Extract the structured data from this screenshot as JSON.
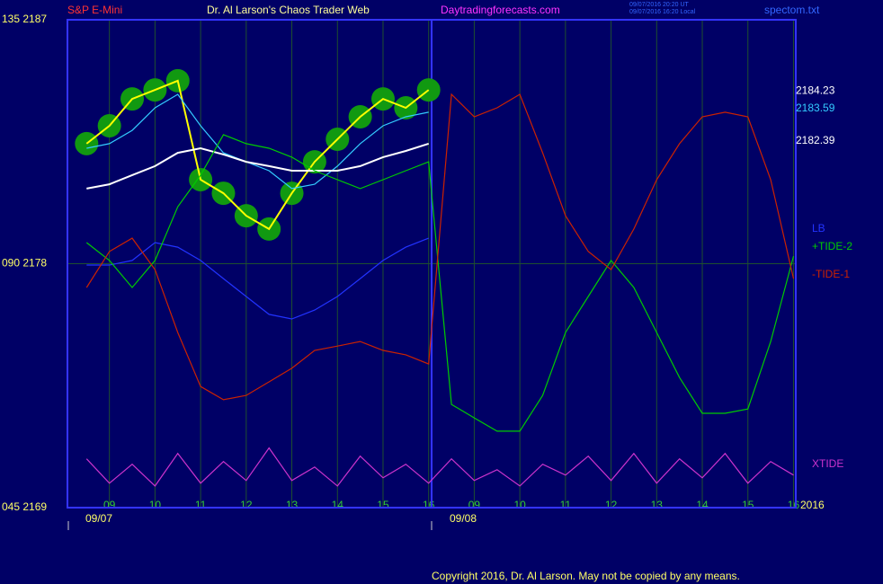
{
  "header": {
    "symbol": "S&P E-Mini",
    "title": "Dr. Al Larson's Chaos Trader Web",
    "site": "Daytradingforecasts.com",
    "time_ut": "09/07/2016 20:20 UT",
    "time_local": "09/07/2016 16:20 Local",
    "file": "spectom.txt"
  },
  "chart_data": {
    "type": "line",
    "x": [
      8.5,
      9,
      9.5,
      10,
      10.5,
      11,
      11.5,
      12,
      12.5,
      13,
      13.5,
      14,
      14.5,
      15,
      15.5,
      16,
      16.5,
      17,
      17.5,
      18,
      18.5,
      19,
      19.5,
      20,
      20.5,
      21,
      21.5,
      22,
      22.5,
      23,
      23.5,
      24
    ],
    "xlim": [
      8.08,
      24.05
    ],
    "xticks": [
      {
        "value": 9,
        "label": "09"
      },
      10,
      11,
      12,
      13,
      14,
      15,
      16,
      {
        "value": 17,
        "label": "09"
      },
      {
        "value": 18,
        "label": "10"
      },
      {
        "value": 19,
        "label": "11"
      },
      {
        "value": 20,
        "label": "12"
      },
      {
        "value": 21,
        "label": "13"
      },
      {
        "value": 22,
        "label": "14"
      },
      {
        "value": 23,
        "label": "15"
      },
      {
        "value": 24,
        "label": "16"
      }
    ],
    "ylim": [
      2169,
      2187
    ],
    "yticks": [
      {
        "value": 2187,
        "label": "135  2187"
      },
      {
        "value": 2178,
        "label": "090  2178"
      },
      {
        "value": 2169,
        "label": "045  2169"
      }
    ],
    "grid": true,
    "series": [
      {
        "color": "#ffff00",
        "glow": "#119911",
        "values": [
          2182.43,
          2183.09,
          2184.08,
          2184.41,
          2184.75,
          2181.1,
          2180.6,
          2179.77,
          2179.28,
          2180.6,
          2181.76,
          2182.59,
          2183.42,
          2184.08,
          2183.75,
          2184.41,
          null,
          null,
          null,
          null,
          null,
          null,
          null,
          null,
          null,
          null,
          null,
          null,
          null,
          null,
          null,
          null
        ]
      },
      {
        "color": "#33ccff",
        "values": [
          2182.26,
          2182.43,
          2182.92,
          2183.75,
          2184.25,
          2183.09,
          2182.09,
          2181.76,
          2181.43,
          2180.77,
          2180.93,
          2181.6,
          2182.43,
          2183.09,
          2183.42,
          2183.59,
          null,
          null,
          null,
          null,
          null,
          null,
          null,
          null,
          null,
          null,
          null,
          null,
          null,
          null,
          null,
          null
        ]
      },
      {
        "color": "#ffffff",
        "values": [
          2180.77,
          2180.93,
          2181.27,
          2181.6,
          2182.09,
          2182.26,
          2182.03,
          2181.76,
          2181.6,
          2181.43,
          2181.43,
          2181.43,
          2181.6,
          2181.93,
          2182.16,
          2182.43,
          null,
          null,
          null,
          null,
          null,
          null,
          null,
          null,
          null,
          null,
          null,
          null,
          null,
          null,
          null,
          null
        ]
      },
      {
        "name": "LB",
        "color": "#2233ff",
        "values": [
          2177.95,
          2177.95,
          2178.12,
          2178.78,
          2178.61,
          2178.12,
          2177.45,
          2176.79,
          2176.13,
          2175.96,
          2176.29,
          2176.79,
          2177.45,
          2178.12,
          2178.61,
          2178.94,
          null,
          null,
          null,
          null,
          null,
          null,
          null,
          null,
          null,
          null,
          null,
          null,
          null,
          null,
          null,
          null
        ]
      },
      {
        "name": "+TIDE-2",
        "color": "#00cc00",
        "values": [
          2178.78,
          2178.12,
          2177.12,
          2178.12,
          2180.1,
          2181.27,
          2182.76,
          2182.43,
          2182.26,
          2181.93,
          2181.43,
          2181.1,
          2180.77,
          2181.1,
          2181.43,
          2181.76,
          2172.81,
          2172.31,
          2171.82,
          2171.82,
          2173.14,
          2175.46,
          2176.79,
          2178.12,
          2177.12,
          2175.46,
          2173.8,
          2172.48,
          2172.48,
          2172.64,
          2175.13,
          2178.28
        ]
      },
      {
        "name": "-TIDE-1",
        "color": "#cc2200",
        "values": [
          2177.12,
          2178.45,
          2178.94,
          2177.78,
          2175.46,
          2173.47,
          2172.98,
          2173.14,
          2173.64,
          2174.14,
          2174.8,
          2174.96,
          2175.13,
          2174.8,
          2174.64,
          2174.3,
          2184.25,
          2183.42,
          2183.75,
          2184.25,
          2182.09,
          2179.77,
          2178.45,
          2177.78,
          2179.28,
          2181.1,
          2182.43,
          2183.42,
          2183.59,
          2183.42,
          2181.1,
          2177.45
        ]
      },
      {
        "name": "XTIDE",
        "color": "#cc33cc",
        "values": [
          2170.8,
          2169.9,
          2170.6,
          2169.8,
          2171.0,
          2169.9,
          2170.7,
          2170.0,
          2171.2,
          2170.0,
          2170.5,
          2169.8,
          2170.9,
          2170.1,
          2170.6,
          2169.9,
          2170.8,
          2170.0,
          2170.4,
          2169.8,
          2170.6,
          2170.2,
          2170.9,
          2170.0,
          2171.0,
          2169.9,
          2170.8,
          2170.1,
          2171.0,
          2169.9,
          2170.7,
          2170.2
        ]
      }
    ],
    "price_labels": [
      {
        "value": 2184.23,
        "color": "#ffffff"
      },
      {
        "value": 2183.59,
        "color": "#33ccff"
      },
      {
        "value": 2182.39,
        "color": "#ffffff"
      }
    ],
    "dates": [
      "09/07",
      "09/08"
    ],
    "year": "2016"
  },
  "copyright": "Copyright 2016, Dr. Al Larson. May not be copied by any means."
}
